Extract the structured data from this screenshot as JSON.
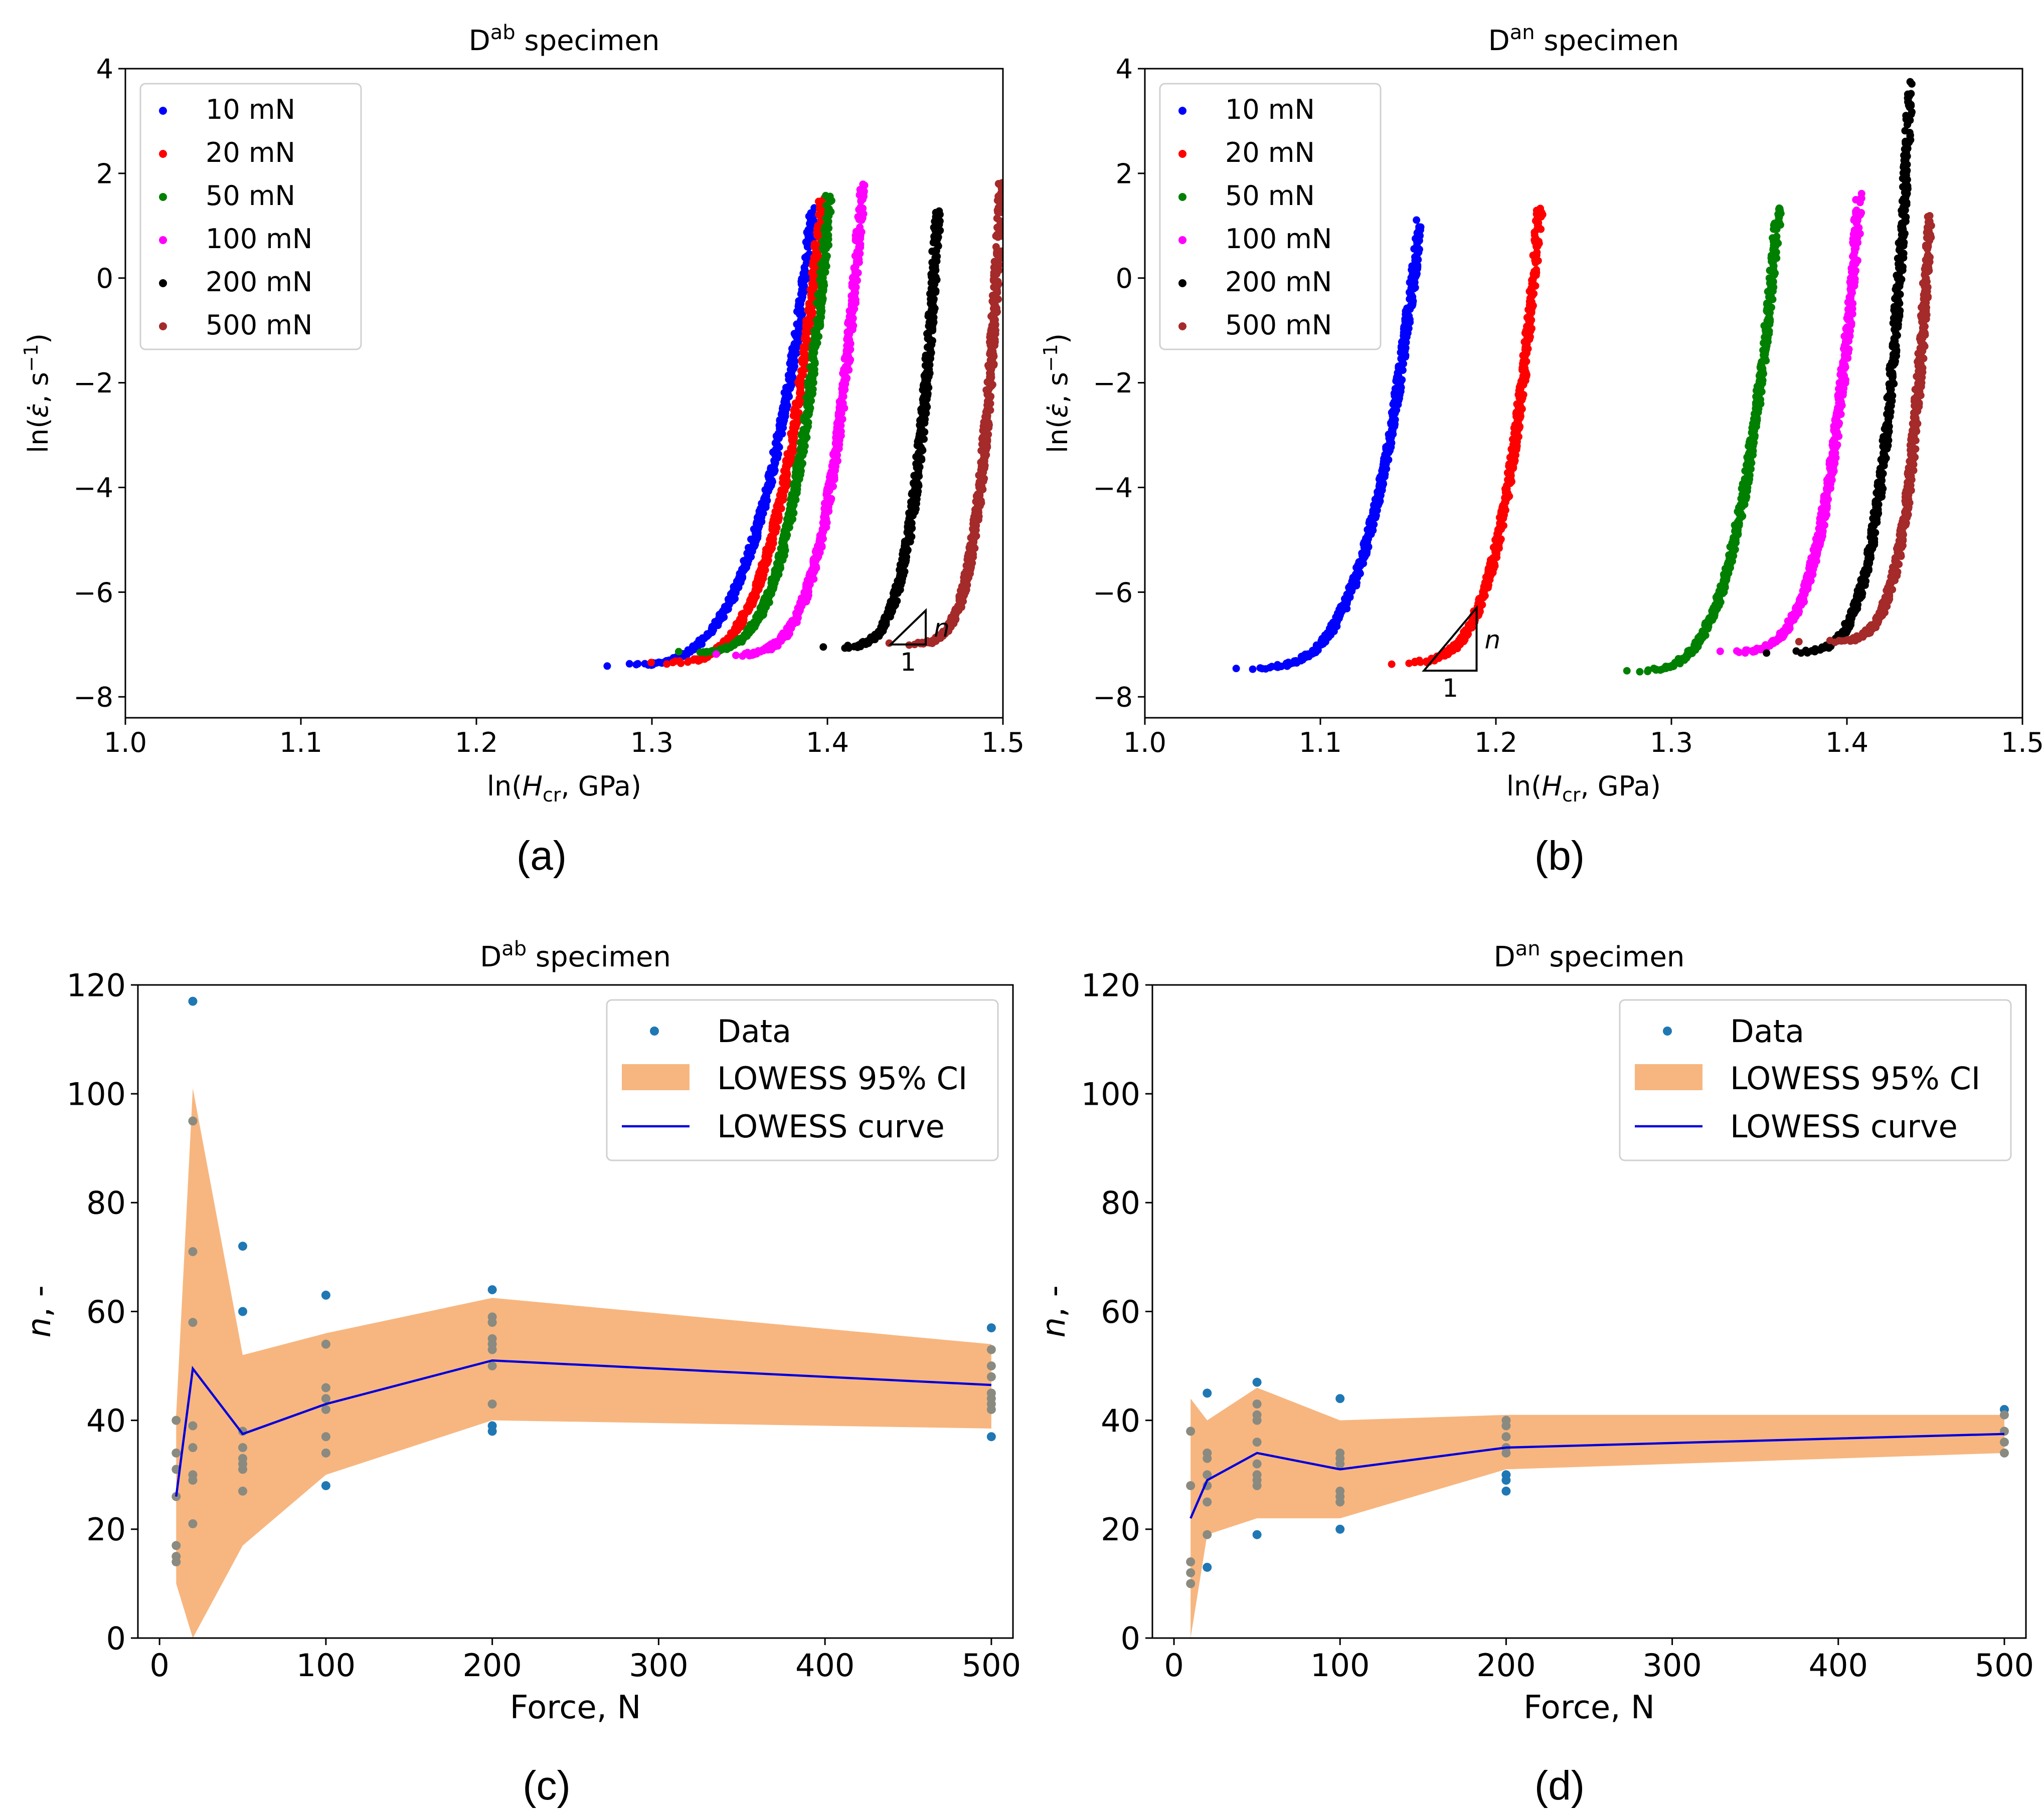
{
  "colors": {
    "blue": "#0000ff",
    "red": "#ff0000",
    "green": "#008000",
    "magenta": "#ff00ff",
    "black": "#000000",
    "brown": "#a52a2a",
    "data_point": "#1f77b4",
    "ci_fill": "#f7b67f",
    "ci_point": "#8a8a80",
    "lowess_line": "#0000dd"
  },
  "chart_data": [
    {
      "id": "a",
      "panel_label": "(a)",
      "type": "scatter",
      "title_base": "D",
      "title_sup": "ab",
      "title_rest": " specimen",
      "xlabel_pre": "ln(",
      "xlabel_var": "H",
      "xlabel_sub": "cr",
      "xlabel_post": ", GPa)",
      "ylabel_pre": "ln(",
      "ylabel_var": "ε̇",
      "ylabel_mid": ", s",
      "ylabel_sup": "−1",
      "ylabel_post": ")",
      "xlim": [
        1.0,
        1.5
      ],
      "ylim": [
        -8.4,
        4
      ],
      "xticks": [
        1.0,
        1.1,
        1.2,
        1.3,
        1.4,
        1.5
      ],
      "xtick_labels": [
        "1.0",
        "1.1",
        "1.2",
        "1.3",
        "1.4",
        "1.5"
      ],
      "yticks": [
        4,
        2,
        0,
        -2,
        -4,
        -6,
        -8
      ],
      "ytick_labels": [
        "4",
        "2",
        "0",
        "−2",
        "−4",
        "−6",
        "−8"
      ],
      "legend": {
        "position": "top-left"
      },
      "slope_triangle": {
        "x0": 1.436,
        "x1": 1.456,
        "y_base": -7.0,
        "y_top": -6.35,
        "n_label": "n",
        "one_label": "1"
      },
      "series": [
        {
          "name": "10 mN",
          "color": "blue",
          "x_start": 1.274,
          "x_end": 1.392,
          "y_start": -7.4,
          "y_end": 1.3,
          "curvature": 1.9
        },
        {
          "name": "20 mN",
          "color": "red",
          "x_start": 1.299,
          "x_end": 1.397,
          "y_start": -7.35,
          "y_end": 1.5,
          "curvature": 1.9
        },
        {
          "name": "50 mN",
          "color": "green",
          "x_start": 1.316,
          "x_end": 1.401,
          "y_start": -7.15,
          "y_end": 1.55,
          "curvature": 2.0
        },
        {
          "name": "100 mN",
          "color": "magenta",
          "x_start": 1.336,
          "x_end": 1.42,
          "y_start": -7.2,
          "y_end": 1.75,
          "curvature": 2.1
        },
        {
          "name": "200 mN",
          "color": "black",
          "x_start": 1.398,
          "x_end": 1.463,
          "y_start": -7.05,
          "y_end": 1.3,
          "curvature": 2.3
        },
        {
          "name": "500 mN",
          "color": "brown",
          "x_start": 1.435,
          "x_end": 1.499,
          "y_start": -7.0,
          "y_end": 1.75,
          "curvature": 2.6
        }
      ]
    },
    {
      "id": "b",
      "panel_label": "(b)",
      "type": "scatter",
      "title_base": "D",
      "title_sup": "an",
      "title_rest": " specimen",
      "xlabel_pre": "ln(",
      "xlabel_var": "H",
      "xlabel_sub": "cr",
      "xlabel_post": ", GPa)",
      "ylabel_pre": "ln(",
      "ylabel_var": "ε̇",
      "ylabel_mid": ", s",
      "ylabel_sup": "−1",
      "ylabel_post": ")",
      "xlim": [
        1.0,
        1.5
      ],
      "ylim": [
        -8.4,
        4
      ],
      "xticks": [
        1.0,
        1.1,
        1.2,
        1.3,
        1.4,
        1.5
      ],
      "xtick_labels": [
        "1.0",
        "1.1",
        "1.2",
        "1.3",
        "1.4",
        "1.5"
      ],
      "yticks": [
        4,
        2,
        0,
        -2,
        -4,
        -6,
        -8
      ],
      "ytick_labels": [
        "4",
        "2",
        "0",
        "−2",
        "−4",
        "−6",
        "−8"
      ],
      "legend": {
        "position": "top-left"
      },
      "slope_triangle": {
        "x0": 1.159,
        "x1": 1.189,
        "y_base": -7.5,
        "y_top": -6.3,
        "n_label": "n",
        "one_label": "1"
      },
      "series": [
        {
          "name": "10 mN",
          "color": "blue",
          "x_start": 1.051,
          "x_end": 1.156,
          "y_start": -7.45,
          "y_end": 0.95,
          "curvature": 1.9
        },
        {
          "name": "20 mN",
          "color": "red",
          "x_start": 1.14,
          "x_end": 1.225,
          "y_start": -7.35,
          "y_end": 1.35,
          "curvature": 2.0
        },
        {
          "name": "50 mN",
          "color": "green",
          "x_start": 1.273,
          "x_end": 1.361,
          "y_start": -7.5,
          "y_end": 1.35,
          "curvature": 1.9
        },
        {
          "name": "100 mN",
          "color": "magenta",
          "x_start": 1.328,
          "x_end": 1.407,
          "y_start": -7.15,
          "y_end": 1.5,
          "curvature": 2.0
        },
        {
          "name": "200 mN",
          "color": "black",
          "x_start": 1.355,
          "x_end": 1.436,
          "y_start": -7.15,
          "y_end": 3.65,
          "curvature": 2.6
        },
        {
          "name": "500 mN",
          "color": "brown",
          "x_start": 1.373,
          "x_end": 1.447,
          "y_start": -6.95,
          "y_end": 1.15,
          "curvature": 2.9
        }
      ]
    },
    {
      "id": "c",
      "panel_label": "(c)",
      "type": "scatter",
      "title_base": "D",
      "title_sup": "ab",
      "title_rest": " specimen",
      "xlabel": "Force, N",
      "ylabel_var": "n",
      "ylabel_post": ", -",
      "xlim": [
        -13,
        513
      ],
      "ylim": [
        0,
        120
      ],
      "xticks": [
        0,
        100,
        200,
        300,
        400,
        500
      ],
      "xtick_labels": [
        "0",
        "100",
        "200",
        "300",
        "400",
        "500"
      ],
      "yticks": [
        0,
        20,
        40,
        60,
        80,
        100,
        120
      ],
      "ytick_labels": [
        "0",
        "20",
        "40",
        "60",
        "80",
        "100",
        "120"
      ],
      "legend": {
        "position": "top-right",
        "entries": [
          "Data",
          "LOWESS 95% CI",
          "LOWESS curve"
        ]
      },
      "points": [
        {
          "x": 10,
          "y": 40
        },
        {
          "x": 10,
          "y": 34
        },
        {
          "x": 10,
          "y": 31
        },
        {
          "x": 10,
          "y": 26
        },
        {
          "x": 10,
          "y": 17
        },
        {
          "x": 10,
          "y": 15
        },
        {
          "x": 10,
          "y": 14
        },
        {
          "x": 20,
          "y": 117
        },
        {
          "x": 20,
          "y": 95
        },
        {
          "x": 20,
          "y": 71
        },
        {
          "x": 20,
          "y": 58
        },
        {
          "x": 20,
          "y": 39
        },
        {
          "x": 20,
          "y": 35
        },
        {
          "x": 20,
          "y": 30
        },
        {
          "x": 20,
          "y": 29
        },
        {
          "x": 20,
          "y": 21
        },
        {
          "x": 50,
          "y": 72
        },
        {
          "x": 50,
          "y": 60
        },
        {
          "x": 50,
          "y": 38
        },
        {
          "x": 50,
          "y": 35
        },
        {
          "x": 50,
          "y": 33
        },
        {
          "x": 50,
          "y": 32
        },
        {
          "x": 50,
          "y": 31
        },
        {
          "x": 50,
          "y": 27
        },
        {
          "x": 100,
          "y": 63
        },
        {
          "x": 100,
          "y": 54
        },
        {
          "x": 100,
          "y": 46
        },
        {
          "x": 100,
          "y": 44
        },
        {
          "x": 100,
          "y": 42
        },
        {
          "x": 100,
          "y": 37
        },
        {
          "x": 100,
          "y": 34
        },
        {
          "x": 100,
          "y": 28
        },
        {
          "x": 200,
          "y": 64
        },
        {
          "x": 200,
          "y": 59
        },
        {
          "x": 200,
          "y": 58
        },
        {
          "x": 200,
          "y": 55
        },
        {
          "x": 200,
          "y": 54
        },
        {
          "x": 200,
          "y": 53
        },
        {
          "x": 200,
          "y": 50
        },
        {
          "x": 200,
          "y": 43
        },
        {
          "x": 200,
          "y": 39
        },
        {
          "x": 200,
          "y": 38
        },
        {
          "x": 500,
          "y": 57
        },
        {
          "x": 500,
          "y": 53
        },
        {
          "x": 500,
          "y": 50
        },
        {
          "x": 500,
          "y": 48
        },
        {
          "x": 500,
          "y": 45
        },
        {
          "x": 500,
          "y": 44
        },
        {
          "x": 500,
          "y": 43
        },
        {
          "x": 500,
          "y": 42
        },
        {
          "x": 500,
          "y": 37
        }
      ],
      "lowess_curve": {
        "x": [
          10,
          20,
          50,
          100,
          200,
          500
        ],
        "y": [
          26,
          49.5,
          37.5,
          43,
          51,
          46.5
        ]
      },
      "ci_band": {
        "x": [
          10,
          20,
          50,
          100,
          200,
          500
        ],
        "lower": [
          10,
          0,
          17,
          30,
          40,
          38.5
        ],
        "upper": [
          41,
          101,
          52,
          56,
          62.5,
          54
        ]
      }
    },
    {
      "id": "d",
      "panel_label": "(d)",
      "type": "scatter",
      "title_base": "D",
      "title_sup": "an",
      "title_rest": " specimen",
      "xlabel": "Force, N",
      "ylabel_var": "n",
      "ylabel_post": ", -",
      "xlim": [
        -13,
        513
      ],
      "ylim": [
        0,
        120
      ],
      "xticks": [
        0,
        100,
        200,
        300,
        400,
        500
      ],
      "xtick_labels": [
        "0",
        "100",
        "200",
        "300",
        "400",
        "500"
      ],
      "yticks": [
        0,
        20,
        40,
        60,
        80,
        100,
        120
      ],
      "ytick_labels": [
        "0",
        "20",
        "40",
        "60",
        "80",
        "100",
        "120"
      ],
      "legend": {
        "position": "top-right",
        "entries": [
          "Data",
          "LOWESS 95% CI",
          "LOWESS curve"
        ]
      },
      "points": [
        {
          "x": 10,
          "y": 38
        },
        {
          "x": 10,
          "y": 28
        },
        {
          "x": 10,
          "y": 14
        },
        {
          "x": 10,
          "y": 12
        },
        {
          "x": 10,
          "y": 10
        },
        {
          "x": 20,
          "y": 45
        },
        {
          "x": 20,
          "y": 34
        },
        {
          "x": 20,
          "y": 33
        },
        {
          "x": 20,
          "y": 30
        },
        {
          "x": 20,
          "y": 28
        },
        {
          "x": 20,
          "y": 25
        },
        {
          "x": 20,
          "y": 19
        },
        {
          "x": 20,
          "y": 13
        },
        {
          "x": 50,
          "y": 47
        },
        {
          "x": 50,
          "y": 43
        },
        {
          "x": 50,
          "y": 41
        },
        {
          "x": 50,
          "y": 40
        },
        {
          "x": 50,
          "y": 36
        },
        {
          "x": 50,
          "y": 32
        },
        {
          "x": 50,
          "y": 30
        },
        {
          "x": 50,
          "y": 29
        },
        {
          "x": 50,
          "y": 28
        },
        {
          "x": 50,
          "y": 19
        },
        {
          "x": 100,
          "y": 44
        },
        {
          "x": 100,
          "y": 34
        },
        {
          "x": 100,
          "y": 33
        },
        {
          "x": 100,
          "y": 32
        },
        {
          "x": 100,
          "y": 27
        },
        {
          "x": 100,
          "y": 26
        },
        {
          "x": 100,
          "y": 25
        },
        {
          "x": 100,
          "y": 20
        },
        {
          "x": 200,
          "y": 40
        },
        {
          "x": 200,
          "y": 39
        },
        {
          "x": 200,
          "y": 37
        },
        {
          "x": 200,
          "y": 35
        },
        {
          "x": 200,
          "y": 34
        },
        {
          "x": 200,
          "y": 30
        },
        {
          "x": 200,
          "y": 29
        },
        {
          "x": 200,
          "y": 27
        },
        {
          "x": 500,
          "y": 42
        },
        {
          "x": 500,
          "y": 41
        },
        {
          "x": 500,
          "y": 38
        },
        {
          "x": 500,
          "y": 36
        },
        {
          "x": 500,
          "y": 34
        }
      ],
      "lowess_curve": {
        "x": [
          10,
          20,
          50,
          100,
          200,
          500
        ],
        "y": [
          22,
          29,
          34,
          31,
          35,
          37.5
        ]
      },
      "ci_band": {
        "x": [
          10,
          20,
          50,
          100,
          200,
          500
        ],
        "lower": [
          0,
          19,
          22,
          22,
          31,
          34
        ],
        "upper": [
          44,
          40,
          46,
          40,
          41,
          41
        ]
      }
    }
  ]
}
